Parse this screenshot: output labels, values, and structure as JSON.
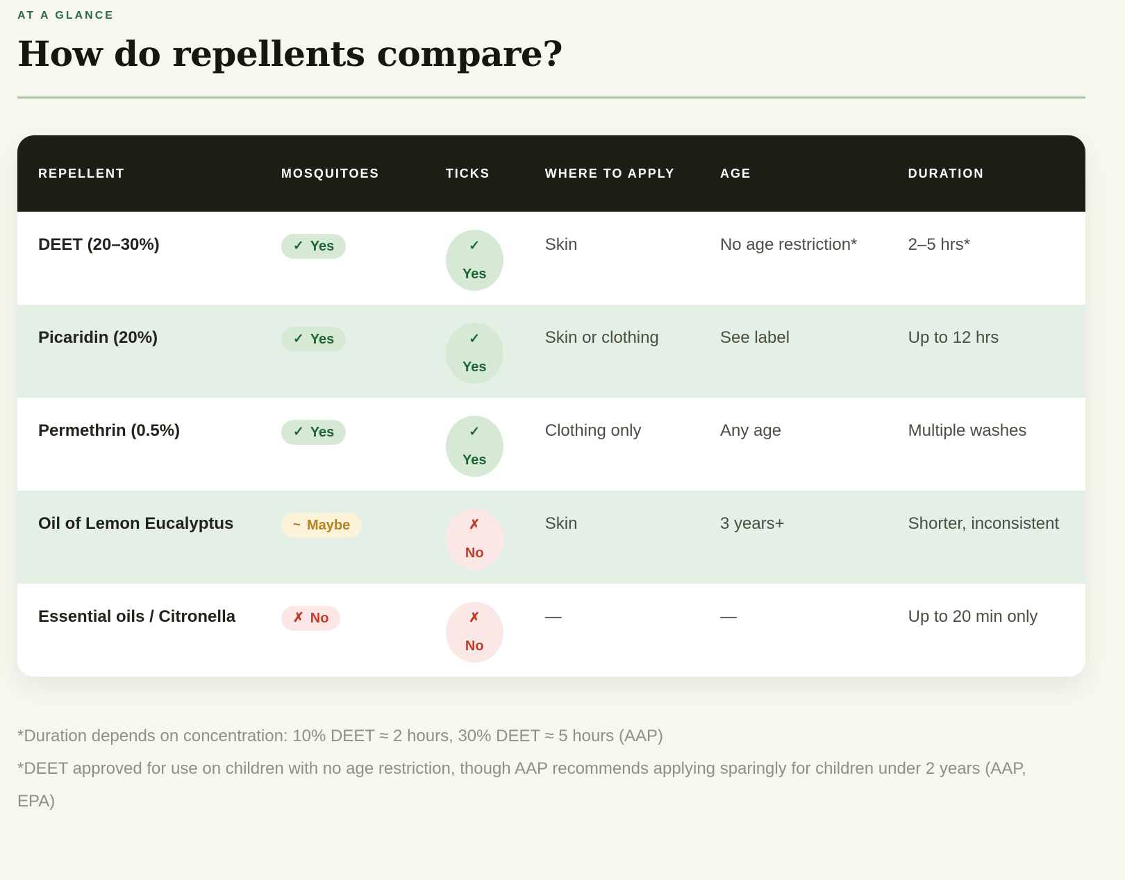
{
  "header": {
    "eyebrow": "AT A GLANCE",
    "title": "How do repellents compare?"
  },
  "table": {
    "columns": [
      "REPELLENT",
      "MOSQUITOES",
      "TICKS",
      "WHERE TO APPLY",
      "AGE",
      "DURATION"
    ],
    "rows": [
      {
        "repellent": "DEET (20–30%)",
        "mosquitoes": {
          "icon": "✓",
          "label": "Yes",
          "tone": "yes"
        },
        "ticks": {
          "icon": "✓",
          "label": "Yes",
          "tone": "yes"
        },
        "where_to_apply": "Skin",
        "age": "No age restriction*",
        "duration": "2–5 hrs*"
      },
      {
        "repellent": "Picaridin (20%)",
        "mosquitoes": {
          "icon": "✓",
          "label": "Yes",
          "tone": "yes"
        },
        "ticks": {
          "icon": "✓",
          "label": "Yes",
          "tone": "yes"
        },
        "where_to_apply": "Skin or clothing",
        "age": "See label",
        "duration": "Up to 12 hrs"
      },
      {
        "repellent": "Permethrin (0.5%)",
        "mosquitoes": {
          "icon": "✓",
          "label": "Yes",
          "tone": "yes"
        },
        "ticks": {
          "icon": "✓",
          "label": "Yes",
          "tone": "yes"
        },
        "where_to_apply": "Clothing only",
        "age": "Any age",
        "duration": "Multiple washes"
      },
      {
        "repellent": "Oil of Lemon Eucalyptus",
        "mosquitoes": {
          "icon": "~",
          "label": "Maybe",
          "tone": "maybe"
        },
        "ticks": {
          "icon": "✗",
          "label": "No",
          "tone": "no"
        },
        "where_to_apply": "Skin",
        "age": "3 years+",
        "duration": "Shorter, inconsistent"
      },
      {
        "repellent": "Essential oils / Citronella",
        "mosquitoes": {
          "icon": "✗",
          "label": "No",
          "tone": "no"
        },
        "ticks": {
          "icon": "✗",
          "label": "No",
          "tone": "no"
        },
        "where_to_apply": "—",
        "age": "—",
        "duration": "Up to 20 min only"
      }
    ]
  },
  "footnotes": [
    "*Duration depends on concentration: 10% DEET ≈ 2 hours, 30% DEET ≈ 5 hours (AAP)",
    "*DEET approved for use on children with no age restriction, though AAP recommends applying sparingly for children under 2 years (AAP, EPA)"
  ],
  "colors": {
    "page-bg": "#f6f7ef",
    "header-bg": "#1d1f16",
    "row-green": "#e4efe6",
    "badge-yes-bg": "#d6e9d4",
    "badge-yes-text": "#1e6434",
    "badge-maybe-bg": "#fbf2d9",
    "badge-maybe-text": "#b5831f",
    "badge-no-bg": "#fbe8e6",
    "badge-no-text": "#c23b2a",
    "divider": "#a4c9a4",
    "accent-green": "#2e6b3e",
    "body-text": "#4a4f41",
    "label-text": "#22241c",
    "footnote-text": "#8d9280"
  }
}
